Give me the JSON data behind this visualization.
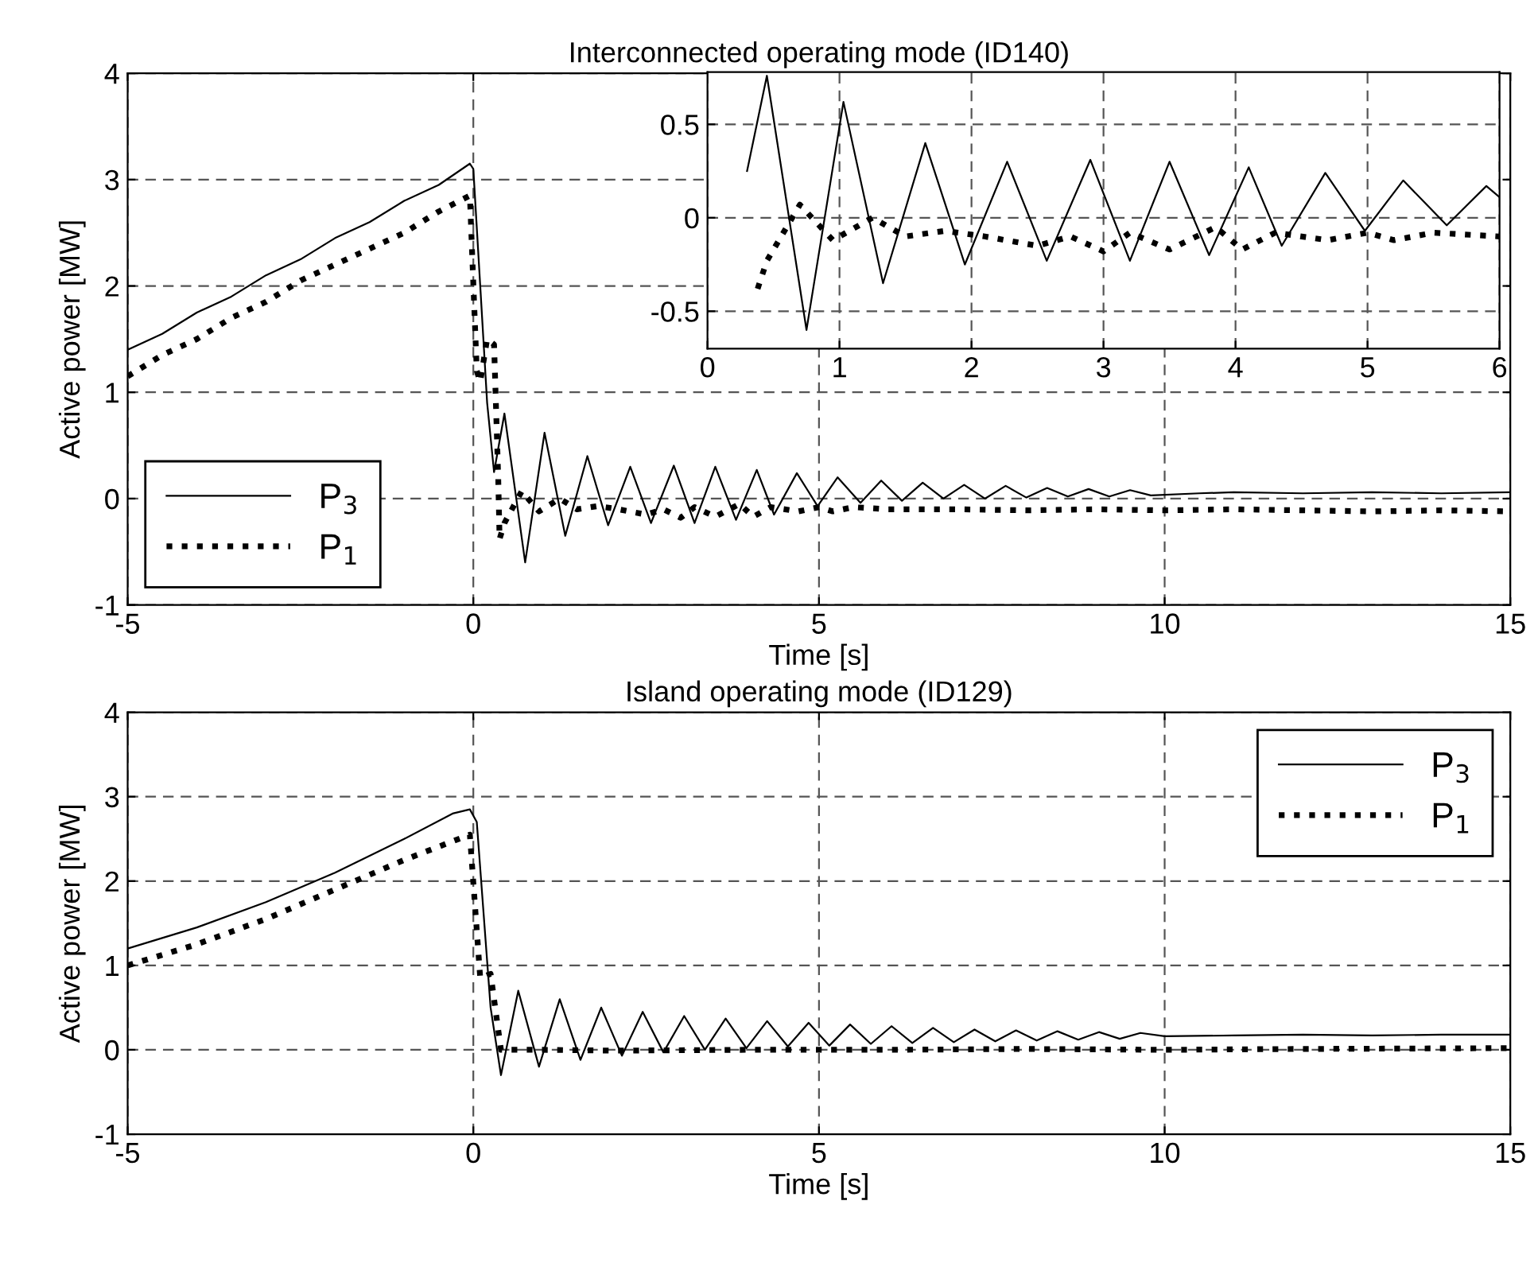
{
  "chart_data": [
    {
      "type": "line",
      "title": "Interconnected operating mode (ID140)",
      "xlabel": "Time [s]",
      "ylabel": "Active power [MW]",
      "xlim": [
        -5,
        15
      ],
      "xticks": [
        -5,
        0,
        5,
        10,
        15
      ],
      "ylim": [
        -1,
        4
      ],
      "yticks": [
        -1,
        0,
        1,
        2,
        3,
        4
      ],
      "grid": true,
      "legend": "bottom left",
      "series": [
        {
          "name": "P$_{3}$",
          "color": "#000000",
          "line_style": "solid",
          "x": [
            -5,
            -4.5,
            -4,
            -3.5,
            -3,
            -2.5,
            -2,
            -1.5,
            -1,
            -0.5,
            -0.05,
            0,
            0.1,
            0.2,
            0.3,
            0.45,
            0.75,
            1.03,
            1.33,
            1.65,
            1.95,
            2.27,
            2.57,
            2.9,
            3.2,
            3.5,
            3.8,
            4.1,
            4.35,
            4.68,
            4.98,
            5.27,
            5.6,
            5.9,
            6.2,
            6.5,
            6.8,
            7.1,
            7.4,
            7.7,
            8.0,
            8.3,
            8.6,
            8.9,
            9.2,
            9.5,
            9.8,
            10.5,
            11,
            12,
            13,
            14,
            15
          ],
          "values": [
            1.4,
            1.55,
            1.75,
            1.9,
            2.1,
            2.25,
            2.45,
            2.6,
            2.8,
            2.95,
            3.15,
            3.1,
            2.0,
            0.9,
            0.25,
            0.8,
            -0.6,
            0.62,
            -0.35,
            0.4,
            -0.25,
            0.3,
            -0.23,
            0.31,
            -0.23,
            0.3,
            -0.2,
            0.27,
            -0.15,
            0.24,
            -0.07,
            0.2,
            -0.04,
            0.17,
            -0.02,
            0.15,
            0,
            0.13,
            0,
            0.12,
            0.01,
            0.1,
            0.02,
            0.09,
            0.02,
            0.08,
            0.03,
            0.05,
            0.06,
            0.05,
            0.06,
            0.05,
            0.06
          ]
        },
        {
          "name": "P$_{1}$",
          "color": "#000000",
          "line_style": "dotted",
          "x": [
            -5,
            -4.5,
            -4,
            -3.5,
            -3,
            -2.5,
            -2,
            -1.5,
            -1,
            -0.5,
            -0.05,
            0.05,
            0.1,
            0.2,
            0.3,
            0.36,
            0.38,
            0.45,
            0.7,
            0.95,
            1.25,
            1.5,
            1.8,
            2.1,
            2.5,
            2.75,
            3.0,
            3.2,
            3.5,
            3.85,
            4.05,
            4.3,
            4.7,
            5.0,
            5.2,
            5.5,
            6,
            7,
            8,
            9,
            10,
            11,
            12,
            13,
            14,
            15
          ],
          "values": [
            1.15,
            1.35,
            1.5,
            1.7,
            1.85,
            2.05,
            2.2,
            2.35,
            2.5,
            2.7,
            2.85,
            1.2,
            1.1,
            1.5,
            1.45,
            0.2,
            -0.38,
            -0.23,
            0.07,
            -0.12,
            0,
            -0.1,
            -0.07,
            -0.1,
            -0.15,
            -0.1,
            -0.18,
            -0.08,
            -0.17,
            -0.05,
            -0.17,
            -0.08,
            -0.12,
            -0.08,
            -0.12,
            -0.08,
            -0.1,
            -0.1,
            -0.11,
            -0.1,
            -0.11,
            -0.1,
            -0.11,
            -0.12,
            -0.11,
            -0.12
          ]
        }
      ]
    },
    {
      "type": "line",
      "xlim": [
        0,
        6
      ],
      "xticks": [
        0,
        1,
        2,
        3,
        4,
        5,
        6
      ],
      "ylim": [
        -0.7,
        0.78
      ],
      "yticks": [
        -0.5,
        0,
        0.5
      ],
      "grid": true,
      "series": [
        {
          "color": "#000000",
          "line_style": "solid",
          "x": [
            0.3,
            0.45,
            0.75,
            1.03,
            1.33,
            1.65,
            1.95,
            2.27,
            2.57,
            2.9,
            3.2,
            3.5,
            3.8,
            4.1,
            4.35,
            4.68,
            4.98,
            5.27,
            5.6,
            5.9,
            6
          ],
          "values": [
            0.25,
            0.76,
            -0.6,
            0.62,
            -0.35,
            0.4,
            -0.25,
            0.3,
            -0.23,
            0.31,
            -0.23,
            0.3,
            -0.2,
            0.27,
            -0.15,
            0.24,
            -0.07,
            0.2,
            -0.04,
            0.17,
            0.11
          ]
        },
        {
          "color": "#000000",
          "line_style": "dotted",
          "x": [
            0.38,
            0.45,
            0.7,
            0.95,
            1.25,
            1.5,
            1.8,
            2.1,
            2.5,
            2.75,
            3.0,
            3.2,
            3.5,
            3.85,
            4.05,
            4.3,
            4.7,
            5.0,
            5.2,
            5.5,
            6
          ],
          "values": [
            -0.38,
            -0.23,
            0.07,
            -0.12,
            0,
            -0.1,
            -0.07,
            -0.1,
            -0.15,
            -0.1,
            -0.18,
            -0.08,
            -0.17,
            -0.05,
            -0.17,
            -0.08,
            -0.12,
            -0.08,
            -0.12,
            -0.08,
            -0.1
          ]
        }
      ]
    },
    {
      "type": "line",
      "title": "Island operating mode (ID129)",
      "xlabel": "Time [s]",
      "ylabel": "Active power [MW]",
      "xlim": [
        -5,
        15
      ],
      "xticks": [
        -5,
        0,
        5,
        10,
        15
      ],
      "ylim": [
        -1,
        4
      ],
      "yticks": [
        -1,
        0,
        1,
        2,
        3,
        4
      ],
      "grid": true,
      "legend": "top right",
      "series": [
        {
          "name": "P$_{3}$",
          "color": "#000000",
          "line_style": "solid",
          "x": [
            -5,
            -4,
            -3,
            -2,
            -1,
            -0.3,
            -0.05,
            0.05,
            0.25,
            0.4,
            0.65,
            0.95,
            1.25,
            1.55,
            1.85,
            2.15,
            2.45,
            2.75,
            3.05,
            3.35,
            3.65,
            3.95,
            4.25,
            4.55,
            4.85,
            5.15,
            5.45,
            5.75,
            6.05,
            6.35,
            6.65,
            6.95,
            7.25,
            7.55,
            7.85,
            8.15,
            8.45,
            8.75,
            9.05,
            9.35,
            9.65,
            10,
            11,
            12,
            13,
            14,
            15
          ],
          "values": [
            1.2,
            1.45,
            1.75,
            2.1,
            2.5,
            2.8,
            2.85,
            2.7,
            0.5,
            -0.3,
            0.7,
            -0.2,
            0.6,
            -0.12,
            0.5,
            -0.07,
            0.45,
            -0.03,
            0.4,
            0,
            0.37,
            0.02,
            0.34,
            0.04,
            0.32,
            0.05,
            0.3,
            0.07,
            0.28,
            0.08,
            0.26,
            0.09,
            0.24,
            0.1,
            0.23,
            0.11,
            0.22,
            0.12,
            0.21,
            0.13,
            0.2,
            0.16,
            0.17,
            0.18,
            0.17,
            0.18,
            0.18
          ]
        },
        {
          "name": "P$_{1}$",
          "color": "#000000",
          "line_style": "dotted",
          "x": [
            -5,
            -4,
            -3,
            -2,
            -1,
            -0.05,
            0.1,
            0.25,
            0.4,
            0.6,
            1,
            2,
            4,
            6,
            8,
            10,
            12,
            15
          ],
          "values": [
            1.0,
            1.25,
            1.55,
            1.9,
            2.25,
            2.55,
            0.85,
            0.9,
            0.0,
            0.0,
            0.0,
            -0.01,
            0.0,
            0.0,
            0.01,
            0.0,
            0.01,
            0.02
          ]
        }
      ]
    }
  ]
}
